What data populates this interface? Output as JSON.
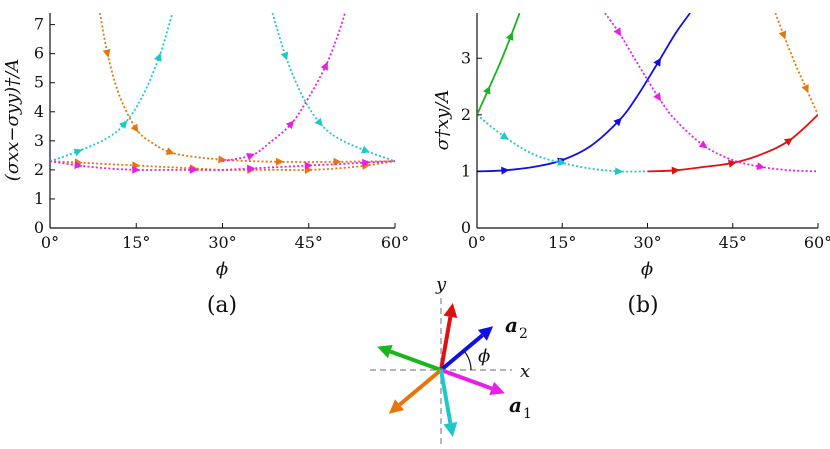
{
  "chart_data": [
    {
      "type": "line",
      "panel_label": "(a)",
      "xlabel": "ϕ",
      "ylabel": "(σxx−σyy)†/A",
      "xlim": [
        0,
        60
      ],
      "ylim": [
        0,
        7.4
      ],
      "xticks": [
        "0°",
        "15°",
        "30°",
        "45°",
        "60°"
      ],
      "yticks": [
        "0",
        "1",
        "2",
        "3",
        "4",
        "5",
        "6",
        "7"
      ],
      "grid": false,
      "series": [
        {
          "color": "#e6760a",
          "style": "dotted",
          "x": [
            0,
            5,
            10,
            15,
            20,
            25,
            30,
            35,
            40,
            45,
            50,
            55,
            60
          ],
          "y": [
            2.3,
            2.25,
            2.2,
            2.15,
            2.1,
            2.05,
            2.0,
            2.0,
            2.0,
            2.0,
            2.05,
            2.15,
            2.3
          ]
        },
        {
          "color": "#e6760a",
          "style": "dotted",
          "x": [
            8.7,
            10,
            12,
            15,
            18,
            21,
            25,
            30,
            35,
            40,
            45,
            50,
            55,
            60
          ],
          "y": [
            7.4,
            6.0,
            4.6,
            3.4,
            2.9,
            2.6,
            2.45,
            2.35,
            2.3,
            2.28,
            2.27,
            2.28,
            2.29,
            2.3
          ]
        },
        {
          "color": "#1ec8c8",
          "style": "dotted",
          "x": [
            0,
            5,
            10,
            13,
            16,
            19,
            21.3
          ],
          "y": [
            2.3,
            2.65,
            3.1,
            3.6,
            4.5,
            5.9,
            7.4
          ]
        },
        {
          "color": "#1ec8c8",
          "style": "dotted",
          "x": [
            38.7,
            41,
            44,
            47,
            50,
            55,
            60
          ],
          "y": [
            7.4,
            5.9,
            4.5,
            3.6,
            3.1,
            2.65,
            2.3
          ]
        },
        {
          "color": "#e81ee8",
          "style": "dotted",
          "x": [
            0,
            5,
            10,
            15,
            20,
            25,
            30,
            35,
            40,
            45,
            50,
            55,
            60
          ],
          "y": [
            2.3,
            2.15,
            2.05,
            2.0,
            2.0,
            2.0,
            2.0,
            2.05,
            2.1,
            2.15,
            2.2,
            2.25,
            2.3
          ]
        },
        {
          "color": "#e81ee8",
          "style": "dotted",
          "x": [
            30,
            35,
            38,
            42,
            45,
            48,
            50,
            51.3
          ],
          "y": [
            2.3,
            2.5,
            2.9,
            3.6,
            4.5,
            5.6,
            6.6,
            7.4
          ]
        }
      ]
    },
    {
      "type": "line",
      "panel_label": "(b)",
      "xlabel": "ϕ",
      "ylabel": "σ†xy/A",
      "xlim": [
        0,
        60
      ],
      "ylim": [
        0,
        3.8
      ],
      "xticks": [
        "0°",
        "15°",
        "30°",
        "45°",
        "60°"
      ],
      "yticks": [
        "0",
        "1",
        "2",
        "3"
      ],
      "grid": false,
      "series": [
        {
          "color": "#1ab51a",
          "style": "solid",
          "x": [
            0,
            2,
            4,
            6,
            7.5
          ],
          "y": [
            2.0,
            2.45,
            2.9,
            3.4,
            3.8
          ]
        },
        {
          "color": "#1010e0",
          "style": "solid",
          "x": [
            0,
            5,
            10,
            15,
            20,
            25,
            28,
            32,
            35,
            37.5
          ],
          "y": [
            1.0,
            1.02,
            1.08,
            1.2,
            1.45,
            1.9,
            2.3,
            2.95,
            3.45,
            3.8
          ]
        },
        {
          "color": "#e01010",
          "style": "solid",
          "x": [
            30,
            35,
            40,
            45,
            50,
            55,
            60
          ],
          "y": [
            1.0,
            1.02,
            1.08,
            1.15,
            1.3,
            1.55,
            2.0
          ]
        },
        {
          "color": "#1ec8c8",
          "style": "dotted",
          "x": [
            0,
            5,
            10,
            15,
            20,
            25,
            30
          ],
          "y": [
            2.0,
            1.6,
            1.3,
            1.15,
            1.05,
            1.0,
            1.0
          ]
        },
        {
          "color": "#e81ee8",
          "style": "dotted",
          "x": [
            22.5,
            25,
            28,
            32,
            35,
            40,
            45,
            50,
            55,
            60
          ],
          "y": [
            3.8,
            3.45,
            2.95,
            2.3,
            1.9,
            1.45,
            1.2,
            1.08,
            1.02,
            1.0
          ]
        },
        {
          "color": "#e6760a",
          "style": "dotted",
          "x": [
            52.5,
            54,
            56,
            58,
            60
          ],
          "y": [
            3.8,
            3.4,
            2.9,
            2.45,
            2.0
          ]
        }
      ]
    }
  ],
  "diagram": {
    "x_label": "x",
    "y_label": "y",
    "a1_label": "a",
    "a1_sub": "1",
    "a2_label": "a",
    "a2_sub": "2",
    "phi_label": "ϕ",
    "arrows": [
      {
        "color": "#e01010",
        "angle_deg": 80
      },
      {
        "color": "#1010e0",
        "angle_deg": 40
      },
      {
        "color": "#1ab51a",
        "angle_deg": 160
      },
      {
        "color": "#e81ee8",
        "angle_deg": -20
      },
      {
        "color": "#e6760a",
        "angle_deg": 220
      },
      {
        "color": "#1ec8c8",
        "angle_deg": 280
      }
    ]
  }
}
